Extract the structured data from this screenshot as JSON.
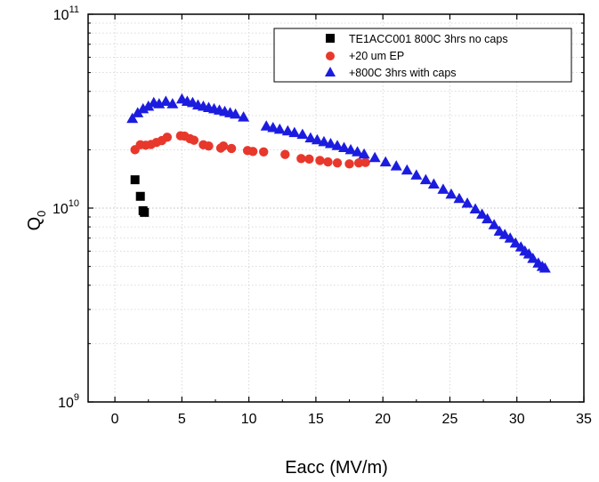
{
  "chart_data": {
    "type": "scatter",
    "xlabel": "Eacc (MV/m)",
    "ylabel": {
      "base": "Q",
      "sub": "0"
    },
    "xlim": [
      -2,
      35
    ],
    "ylim": [
      1000000000,
      100000000000
    ],
    "yscale": "log",
    "grid": true,
    "legend_position": "top-right",
    "x_ticks": [
      0,
      5,
      10,
      15,
      20,
      25,
      30,
      35
    ],
    "x_tick_labels": [
      "0",
      "5",
      "10",
      "15",
      "20",
      "25",
      "30",
      "35"
    ],
    "y_ticks": [
      {
        "value": 1000000000,
        "base": "10",
        "exp": "9"
      },
      {
        "value": 10000000000,
        "base": "10",
        "exp": "10"
      },
      {
        "value": 100000000000,
        "base": "10",
        "exp": "11"
      }
    ],
    "series": [
      {
        "name": "TE1ACC001 800C 3hrs no caps",
        "marker": "square",
        "color": "#000000",
        "x": [
          1.5,
          1.9,
          2.1,
          2.2
        ],
        "y": [
          14000000000,
          11500000000,
          9700000000,
          9500000000
        ]
      },
      {
        "name": "+20 um EP",
        "marker": "circle",
        "color": "#e8382c",
        "x": [
          1.5,
          1.9,
          2.3,
          2.7,
          3.1,
          3.5,
          3.9,
          4.9,
          5.2,
          5.6,
          5.9,
          6.6,
          7.0,
          7.9,
          8.1,
          8.7,
          9.9,
          10.3,
          11.1,
          12.7,
          13.9,
          14.5,
          15.3,
          15.9,
          16.6,
          17.5,
          18.2,
          18.7
        ],
        "y": [
          20000000000,
          21200000000,
          21100000000,
          21300000000,
          21800000000,
          22300000000,
          23200000000,
          23600000000,
          23500000000,
          22800000000,
          22400000000,
          21200000000,
          20900000000,
          20400000000,
          20900000000,
          20300000000,
          19800000000,
          19600000000,
          19500000000,
          18900000000,
          18000000000,
          17900000000,
          17600000000,
          17300000000,
          17100000000,
          16900000000,
          17100000000,
          17200000000
        ]
      },
      {
        "name": "+800C 3hrs with caps",
        "marker": "triangle",
        "color": "#1c1ce0",
        "x": [
          1.3,
          1.7,
          2.1,
          2.5,
          2.9,
          3.3,
          3.8,
          4.3,
          5.0,
          5.4,
          5.8,
          6.2,
          6.6,
          7.0,
          7.4,
          7.8,
          8.2,
          8.6,
          9.0,
          9.6,
          11.3,
          11.8,
          12.3,
          12.9,
          13.4,
          14.0,
          14.6,
          15.1,
          15.6,
          16.1,
          16.6,
          17.1,
          17.6,
          18.1,
          18.6,
          19.4,
          20.2,
          21.0,
          21.8,
          22.5,
          23.2,
          23.8,
          24.5,
          25.1,
          25.7,
          26.3,
          26.9,
          27.4,
          27.8,
          28.3,
          28.7,
          29.1,
          29.5,
          29.9,
          30.3,
          30.6,
          30.9,
          31.2,
          31.6,
          31.9,
          32.1
        ],
        "y": [
          29000000000,
          31000000000,
          32500000000,
          33500000000,
          35000000000,
          34500000000,
          35500000000,
          34500000000,
          36500000000,
          35500000000,
          35000000000,
          34000000000,
          33500000000,
          33000000000,
          32500000000,
          32000000000,
          31500000000,
          31000000000,
          30500000000,
          29500000000,
          26500000000,
          26000000000,
          25500000000,
          25000000000,
          24500000000,
          24000000000,
          23000000000,
          22500000000,
          22000000000,
          21500000000,
          21000000000,
          20500000000,
          20000000000,
          19500000000,
          19000000000,
          18200000000,
          17300000000,
          16500000000,
          15700000000,
          14800000000,
          14000000000,
          13300000000,
          12500000000,
          11800000000,
          11200000000,
          10600000000,
          9900000000,
          9300000000,
          8800000000,
          8200000000,
          7600000000,
          7300000000,
          7000000000,
          6600000000,
          6300000000,
          6000000000,
          5800000000,
          5500000000,
          5200000000,
          5000000000,
          4900000000
        ]
      }
    ]
  }
}
